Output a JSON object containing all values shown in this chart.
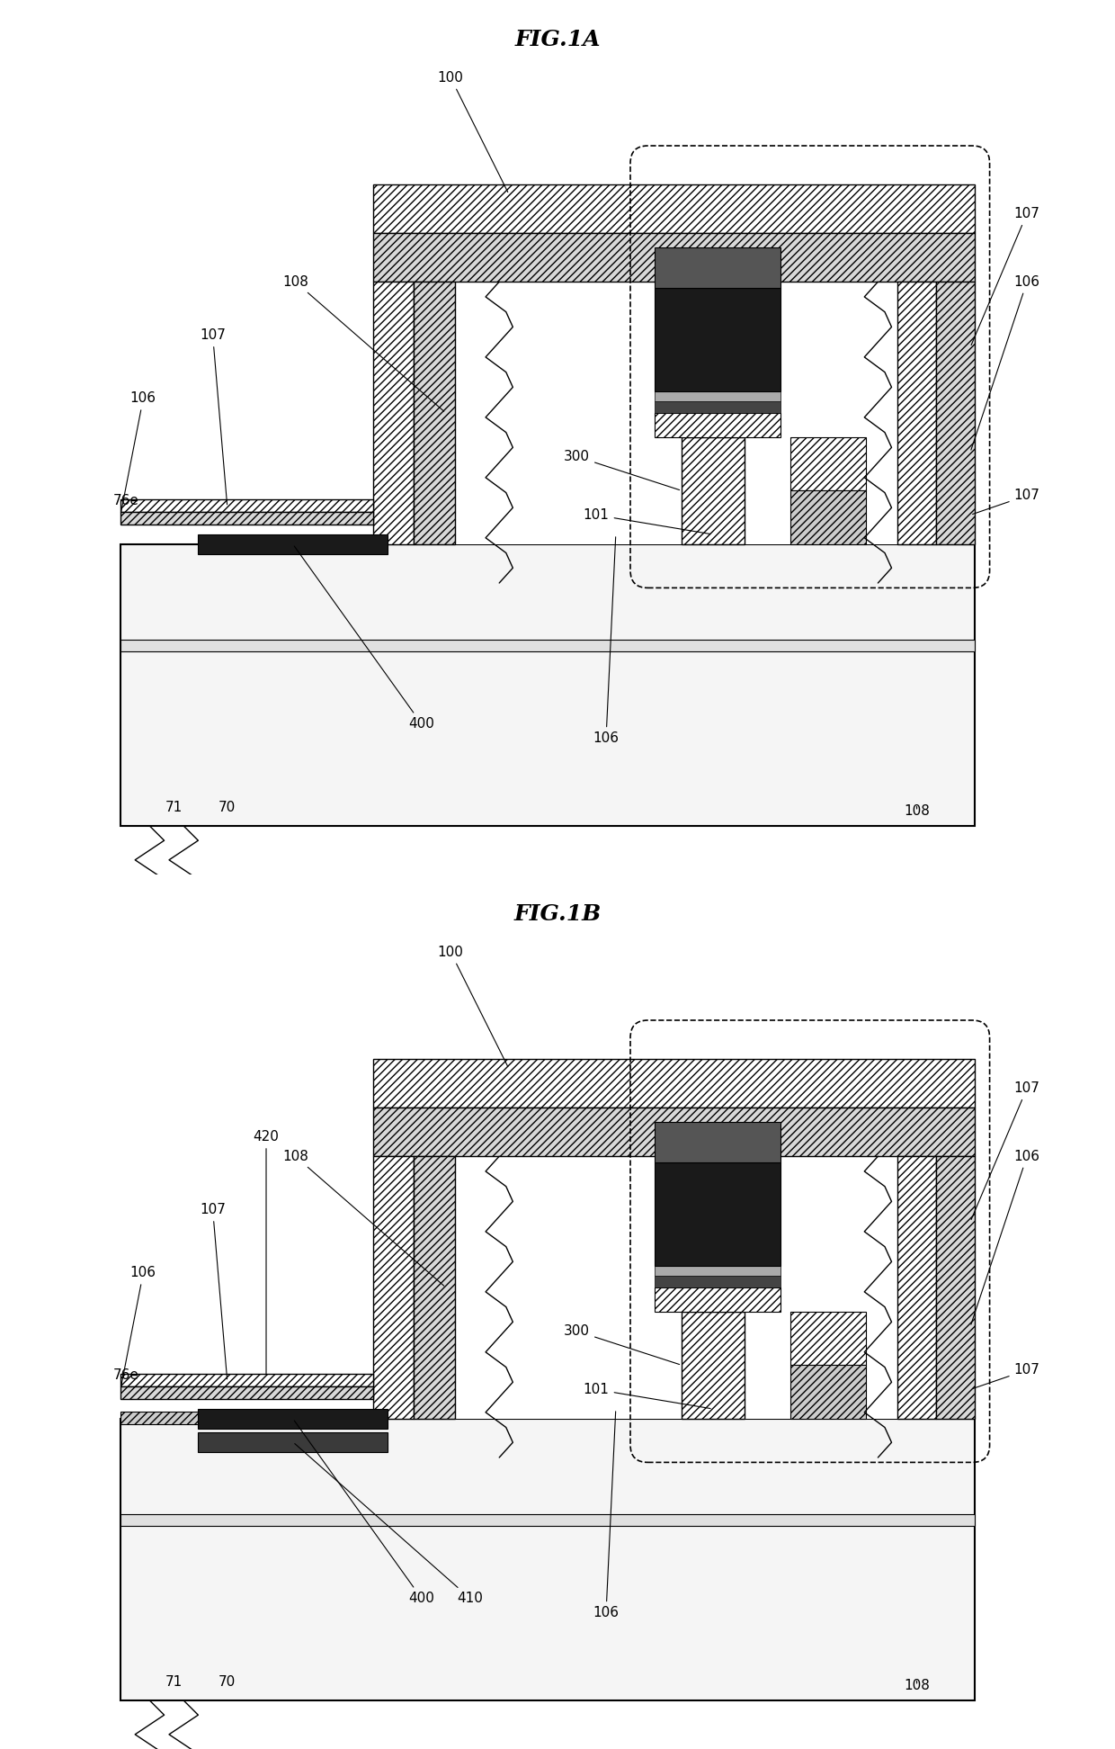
{
  "fig_width": 12.4,
  "fig_height": 19.44,
  "bg_color": "#ffffff",
  "annotation_fontsize": 11,
  "title_fontsize": 18,
  "fig1a_title": "FIG.1A",
  "fig1b_title": "FIG.1B"
}
